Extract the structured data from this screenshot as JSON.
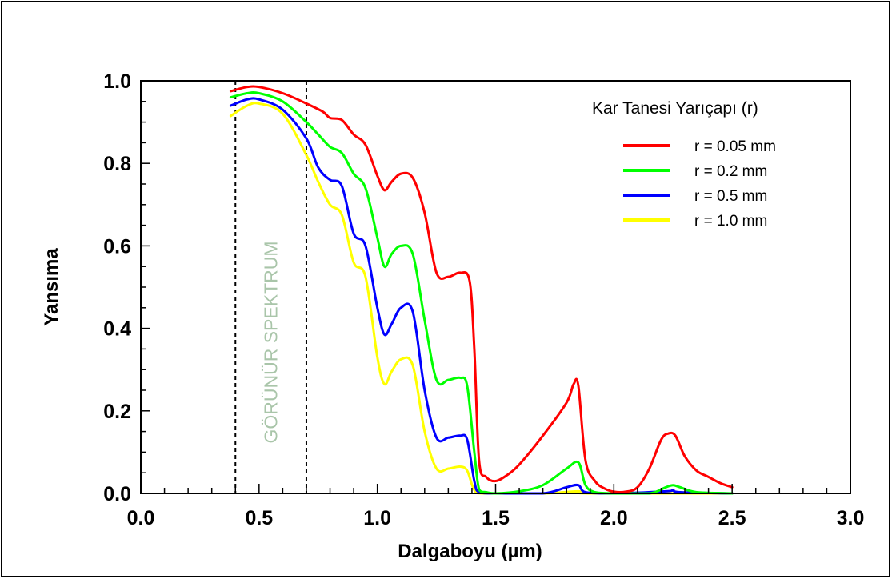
{
  "chart_data": {
    "type": "line",
    "title": "",
    "xlabel": "Dalgaboyu (µm)",
    "ylabel": "Yansıma",
    "xlim": [
      0.0,
      3.0
    ],
    "ylim": [
      0.0,
      1.0
    ],
    "xticks": [
      "0.0",
      "0.5",
      "1.0",
      "1.5",
      "2.0",
      "2.5",
      "3.0"
    ],
    "yticks": [
      "0.0",
      "0.2",
      "0.4",
      "0.6",
      "0.8",
      "1.0"
    ],
    "grid": false,
    "legend": {
      "title": "Kar Tanesi Yarıçapı (r)",
      "placement": "top-right"
    },
    "annotation": {
      "text": "GÖRÜNÜR SPEKTRUM",
      "x_range": [
        0.4,
        0.7
      ]
    },
    "series": [
      {
        "name": "r = 0.05 mm",
        "color": "#ff0000",
        "points": [
          [
            0.38,
            0.975
          ],
          [
            0.45,
            0.985
          ],
          [
            0.5,
            0.985
          ],
          [
            0.6,
            0.97
          ],
          [
            0.7,
            0.945
          ],
          [
            0.77,
            0.925
          ],
          [
            0.8,
            0.91
          ],
          [
            0.85,
            0.905
          ],
          [
            0.9,
            0.87
          ],
          [
            0.95,
            0.845
          ],
          [
            1.0,
            0.77
          ],
          [
            1.03,
            0.735
          ],
          [
            1.06,
            0.755
          ],
          [
            1.1,
            0.775
          ],
          [
            1.15,
            0.765
          ],
          [
            1.2,
            0.68
          ],
          [
            1.25,
            0.535
          ],
          [
            1.3,
            0.525
          ],
          [
            1.35,
            0.535
          ],
          [
            1.39,
            0.515
          ],
          [
            1.41,
            0.35
          ],
          [
            1.43,
            0.08
          ],
          [
            1.46,
            0.04
          ],
          [
            1.5,
            0.03
          ],
          [
            1.55,
            0.045
          ],
          [
            1.6,
            0.07
          ],
          [
            1.7,
            0.14
          ],
          [
            1.8,
            0.22
          ],
          [
            1.83,
            0.265
          ],
          [
            1.85,
            0.26
          ],
          [
            1.88,
            0.08
          ],
          [
            1.92,
            0.03
          ],
          [
            1.96,
            0.012
          ],
          [
            2.0,
            0.004
          ],
          [
            2.05,
            0.004
          ],
          [
            2.1,
            0.015
          ],
          [
            2.15,
            0.06
          ],
          [
            2.2,
            0.13
          ],
          [
            2.23,
            0.145
          ],
          [
            2.26,
            0.14
          ],
          [
            2.3,
            0.09
          ],
          [
            2.35,
            0.055
          ],
          [
            2.4,
            0.04
          ],
          [
            2.45,
            0.025
          ],
          [
            2.5,
            0.015
          ]
        ]
      },
      {
        "name": "r = 0.2 mm",
        "color": "#00ff00",
        "points": [
          [
            0.38,
            0.96
          ],
          [
            0.45,
            0.97
          ],
          [
            0.5,
            0.97
          ],
          [
            0.6,
            0.95
          ],
          [
            0.7,
            0.9
          ],
          [
            0.75,
            0.87
          ],
          [
            0.8,
            0.84
          ],
          [
            0.85,
            0.825
          ],
          [
            0.9,
            0.775
          ],
          [
            0.95,
            0.74
          ],
          [
            1.0,
            0.62
          ],
          [
            1.03,
            0.55
          ],
          [
            1.06,
            0.58
          ],
          [
            1.1,
            0.6
          ],
          [
            1.15,
            0.58
          ],
          [
            1.2,
            0.42
          ],
          [
            1.25,
            0.275
          ],
          [
            1.3,
            0.275
          ],
          [
            1.35,
            0.28
          ],
          [
            1.38,
            0.26
          ],
          [
            1.41,
            0.1
          ],
          [
            1.43,
            0.01
          ],
          [
            1.46,
            0.003
          ],
          [
            1.5,
            0.0
          ],
          [
            1.6,
            0.005
          ],
          [
            1.7,
            0.02
          ],
          [
            1.8,
            0.06
          ],
          [
            1.85,
            0.075
          ],
          [
            1.88,
            0.02
          ],
          [
            1.92,
            0.003
          ],
          [
            2.0,
            0.0
          ],
          [
            2.15,
            0.0
          ],
          [
            2.22,
            0.015
          ],
          [
            2.25,
            0.02
          ],
          [
            2.28,
            0.015
          ],
          [
            2.35,
            0.003
          ],
          [
            2.5,
            0.0
          ]
        ]
      },
      {
        "name": "r = 0.5 mm",
        "color": "#0000ff",
        "points": [
          [
            0.38,
            0.94
          ],
          [
            0.45,
            0.955
          ],
          [
            0.5,
            0.955
          ],
          [
            0.6,
            0.93
          ],
          [
            0.7,
            0.86
          ],
          [
            0.75,
            0.79
          ],
          [
            0.8,
            0.76
          ],
          [
            0.85,
            0.745
          ],
          [
            0.9,
            0.63
          ],
          [
            0.95,
            0.6
          ],
          [
            1.0,
            0.45
          ],
          [
            1.03,
            0.385
          ],
          [
            1.06,
            0.41
          ],
          [
            1.1,
            0.45
          ],
          [
            1.15,
            0.44
          ],
          [
            1.2,
            0.25
          ],
          [
            1.25,
            0.135
          ],
          [
            1.3,
            0.135
          ],
          [
            1.35,
            0.14
          ],
          [
            1.38,
            0.13
          ],
          [
            1.41,
            0.03
          ],
          [
            1.43,
            0.003
          ],
          [
            1.5,
            0.0
          ],
          [
            1.7,
            0.0
          ],
          [
            1.8,
            0.015
          ],
          [
            1.85,
            0.02
          ],
          [
            1.88,
            0.003
          ],
          [
            2.0,
            0.0
          ],
          [
            2.22,
            0.005
          ],
          [
            2.25,
            0.008
          ],
          [
            2.28,
            0.003
          ],
          [
            2.5,
            0.0
          ]
        ]
      },
      {
        "name": "r = 1.0 mm",
        "color": "#ffff00",
        "points": [
          [
            0.38,
            0.915
          ],
          [
            0.45,
            0.94
          ],
          [
            0.5,
            0.945
          ],
          [
            0.6,
            0.92
          ],
          [
            0.7,
            0.82
          ],
          [
            0.75,
            0.755
          ],
          [
            0.8,
            0.7
          ],
          [
            0.85,
            0.675
          ],
          [
            0.9,
            0.56
          ],
          [
            0.95,
            0.525
          ],
          [
            1.0,
            0.33
          ],
          [
            1.03,
            0.265
          ],
          [
            1.06,
            0.295
          ],
          [
            1.1,
            0.325
          ],
          [
            1.15,
            0.31
          ],
          [
            1.2,
            0.15
          ],
          [
            1.25,
            0.06
          ],
          [
            1.3,
            0.06
          ],
          [
            1.35,
            0.065
          ],
          [
            1.38,
            0.055
          ],
          [
            1.41,
            0.008
          ],
          [
            1.45,
            0.0
          ],
          [
            1.7,
            0.0
          ],
          [
            1.85,
            0.005
          ],
          [
            1.9,
            0.0
          ],
          [
            2.5,
            0.0
          ]
        ]
      }
    ]
  }
}
